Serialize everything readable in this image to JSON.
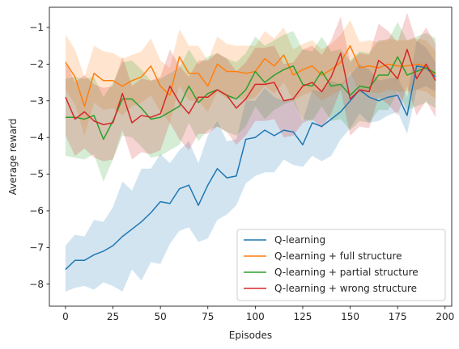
{
  "chart_data": {
    "type": "line",
    "title": "",
    "xlabel": "Episodes",
    "ylabel": "Average reward",
    "xlim": [
      -8.5,
      203.5
    ],
    "ylim": [
      -8.6,
      -0.45
    ],
    "xticks": [
      0,
      25,
      50,
      75,
      100,
      125,
      150,
      175,
      200
    ],
    "yticks": [
      -8,
      -7,
      -6,
      -5,
      -4,
      -3,
      -2,
      -1
    ],
    "grid": false,
    "legend_position": "lower-right",
    "x": [
      0,
      5,
      10,
      15,
      20,
      25,
      30,
      35,
      40,
      45,
      50,
      55,
      60,
      65,
      70,
      75,
      80,
      85,
      90,
      95,
      100,
      105,
      110,
      115,
      120,
      125,
      130,
      135,
      140,
      145,
      150,
      155,
      160,
      165,
      170,
      175,
      180,
      185,
      190,
      195
    ],
    "series": [
      {
        "name": "Q-learning",
        "color": "#1f77b4",
        "values": [
          -7.6,
          -7.35,
          -7.35,
          -7.2,
          -7.1,
          -6.95,
          -6.7,
          -6.5,
          -6.3,
          -6.05,
          -5.75,
          -5.8,
          -5.4,
          -5.3,
          -5.85,
          -5.3,
          -4.85,
          -5.1,
          -5.05,
          -4.05,
          -4.0,
          -3.8,
          -3.95,
          -3.8,
          -3.85,
          -4.2,
          -3.6,
          -3.7,
          -3.5,
          -3.3,
          -3.0,
          -2.7,
          -2.9,
          -3.0,
          -2.9,
          -2.85,
          -3.4,
          -2.05,
          -2.1,
          -2.35
        ],
        "lower": [
          -8.2,
          -8.1,
          -8.05,
          -8.15,
          -7.95,
          -8.05,
          -8.2,
          -7.6,
          -7.9,
          -7.4,
          -7.45,
          -6.9,
          -6.55,
          -6.45,
          -6.85,
          -6.75,
          -6.25,
          -6.1,
          -5.85,
          -5.25,
          -5.05,
          -4.95,
          -4.95,
          -4.6,
          -4.75,
          -4.8,
          -4.5,
          -4.65,
          -4.5,
          -4.05,
          -3.75,
          -3.35,
          -3.6,
          -3.55,
          -3.4,
          -3.3,
          -3.9,
          -2.7,
          -2.6,
          -2.75
        ],
        "upper": [
          -6.95,
          -6.65,
          -6.7,
          -6.25,
          -6.3,
          -5.9,
          -5.2,
          -5.45,
          -4.85,
          -4.85,
          -4.45,
          -4.7,
          -4.35,
          -4.1,
          -4.7,
          -3.95,
          -3.55,
          -4.1,
          -4.05,
          -3.0,
          -3.0,
          -2.65,
          -2.9,
          -3.0,
          -2.9,
          -3.55,
          -2.7,
          -2.75,
          -2.45,
          -2.55,
          -2.3,
          -2.0,
          -2.15,
          -2.45,
          -2.4,
          -2.35,
          -2.9,
          -1.35,
          -1.55,
          -1.95
        ]
      },
      {
        "name": "Q-learning + full structure",
        "color": "#ff7f0e",
        "values": [
          -1.95,
          -2.35,
          -3.15,
          -2.25,
          -2.45,
          -2.45,
          -2.6,
          -2.45,
          -2.35,
          -2.05,
          -2.6,
          -2.85,
          -1.8,
          -2.25,
          -2.25,
          -2.6,
          -2.0,
          -2.2,
          -2.2,
          -2.25,
          -2.2,
          -1.85,
          -2.05,
          -1.75,
          -2.3,
          -2.15,
          -2.05,
          -2.3,
          -2.15,
          -1.95,
          -1.5,
          -2.1,
          -2.05,
          -2.1,
          -2.0,
          -2.05,
          -2.05,
          -2.0,
          -2.05,
          -2.3
        ],
        "lower": [
          -2.7,
          -3.1,
          -3.95,
          -3.05,
          -3.25,
          -3.2,
          -3.4,
          -3.15,
          -3.05,
          -2.85,
          -3.3,
          -3.6,
          -2.6,
          -3.0,
          -3.0,
          -3.3,
          -2.75,
          -2.95,
          -2.9,
          -3.0,
          -2.9,
          -2.6,
          -2.8,
          -2.5,
          -3.0,
          -2.85,
          -2.75,
          -3.0,
          -2.85,
          -2.7,
          -2.2,
          -2.8,
          -2.75,
          -2.8,
          -2.7,
          -2.75,
          -2.75,
          -2.7,
          -2.75,
          -2.95
        ],
        "upper": [
          -1.2,
          -1.6,
          -2.35,
          -1.5,
          -1.65,
          -1.7,
          -1.85,
          -1.75,
          -1.65,
          -1.3,
          -1.9,
          -2.1,
          -1.05,
          -1.5,
          -1.5,
          -1.9,
          -1.25,
          -1.45,
          -1.5,
          -1.5,
          -1.5,
          -1.1,
          -1.3,
          -1.0,
          -1.6,
          -1.45,
          -1.35,
          -1.6,
          -1.45,
          -1.2,
          -0.8,
          -1.4,
          -1.35,
          -1.4,
          -1.3,
          -1.35,
          -1.35,
          -1.3,
          -1.35,
          -1.65
        ]
      },
      {
        "name": "Q-learning + partial structure",
        "color": "#2ca02c",
        "values": [
          -3.45,
          -3.45,
          -3.5,
          -3.4,
          -4.05,
          -3.55,
          -2.95,
          -2.95,
          -3.2,
          -3.5,
          -3.45,
          -3.3,
          -3.15,
          -2.6,
          -3.05,
          -2.8,
          -2.7,
          -2.85,
          -2.95,
          -2.7,
          -2.2,
          -2.5,
          -2.3,
          -2.15,
          -2.05,
          -2.55,
          -2.6,
          -2.2,
          -2.6,
          -2.55,
          -2.85,
          -2.6,
          -2.65,
          -2.3,
          -2.3,
          -1.8,
          -2.3,
          -2.2,
          -2.1,
          -2.25
        ],
        "lower": [
          -4.5,
          -4.55,
          -4.6,
          -4.45,
          -5.2,
          -4.6,
          -3.95,
          -4.0,
          -4.25,
          -4.55,
          -4.5,
          -4.35,
          -4.2,
          -3.6,
          -4.1,
          -3.8,
          -3.7,
          -3.85,
          -3.95,
          -3.7,
          -3.15,
          -3.5,
          -3.25,
          -3.1,
          -3.0,
          -3.5,
          -3.55,
          -3.15,
          -3.55,
          -3.5,
          -3.8,
          -3.55,
          -3.6,
          -3.25,
          -3.25,
          -2.75,
          -3.25,
          -3.15,
          -3.05,
          -3.2
        ],
        "upper": [
          -2.4,
          -2.35,
          -2.4,
          -2.35,
          -2.9,
          -2.5,
          -1.95,
          -1.9,
          -2.15,
          -2.45,
          -2.4,
          -2.25,
          -2.1,
          -1.6,
          -2.0,
          -1.8,
          -1.7,
          -1.85,
          -1.95,
          -1.7,
          -1.25,
          -1.5,
          -1.35,
          -1.2,
          -1.1,
          -1.6,
          -1.65,
          -1.25,
          -1.65,
          -1.6,
          -1.9,
          -1.65,
          -1.7,
          -1.35,
          -1.35,
          -0.85,
          -1.35,
          -1.25,
          -1.15,
          -1.3
        ]
      },
      {
        "name": "Q-learning + wrong structure",
        "color": "#d62728",
        "values": [
          -2.9,
          -3.5,
          -3.3,
          -3.55,
          -3.65,
          -3.6,
          -2.8,
          -3.6,
          -3.4,
          -3.45,
          -3.35,
          -2.6,
          -3.05,
          -3.35,
          -2.9,
          -2.9,
          -2.7,
          -2.85,
          -3.2,
          -2.95,
          -2.55,
          -2.55,
          -2.5,
          -3.0,
          -2.95,
          -2.6,
          -2.5,
          -2.75,
          -2.35,
          -1.7,
          -2.95,
          -2.7,
          -2.75,
          -1.9,
          -2.1,
          -2.4,
          -1.6,
          -2.4,
          -2.0,
          -2.45
        ],
        "lower": [
          -3.95,
          -4.5,
          -4.3,
          -4.55,
          -4.65,
          -4.6,
          -3.8,
          -4.6,
          -4.4,
          -4.45,
          -4.35,
          -3.6,
          -4.05,
          -4.35,
          -3.9,
          -3.9,
          -3.7,
          -3.85,
          -4.2,
          -3.95,
          -3.55,
          -3.55,
          -3.5,
          -4.0,
          -3.95,
          -3.6,
          -3.5,
          -3.75,
          -3.35,
          -2.7,
          -3.95,
          -3.7,
          -3.75,
          -2.9,
          -3.1,
          -3.4,
          -2.6,
          -3.4,
          -3.0,
          -3.45
        ],
        "upper": [
          -1.9,
          -2.5,
          -2.3,
          -2.55,
          -2.65,
          -2.6,
          -1.8,
          -2.6,
          -2.4,
          -2.45,
          -2.35,
          -1.6,
          -2.05,
          -2.35,
          -1.9,
          -1.9,
          -1.7,
          -1.85,
          -2.2,
          -1.95,
          -1.55,
          -1.55,
          -1.5,
          -2.0,
          -1.95,
          -1.6,
          -1.5,
          -1.75,
          -1.35,
          -0.7,
          -1.95,
          -1.7,
          -1.75,
          -0.9,
          -1.1,
          -1.4,
          -0.6,
          -1.4,
          -1.0,
          -1.45
        ]
      }
    ]
  }
}
